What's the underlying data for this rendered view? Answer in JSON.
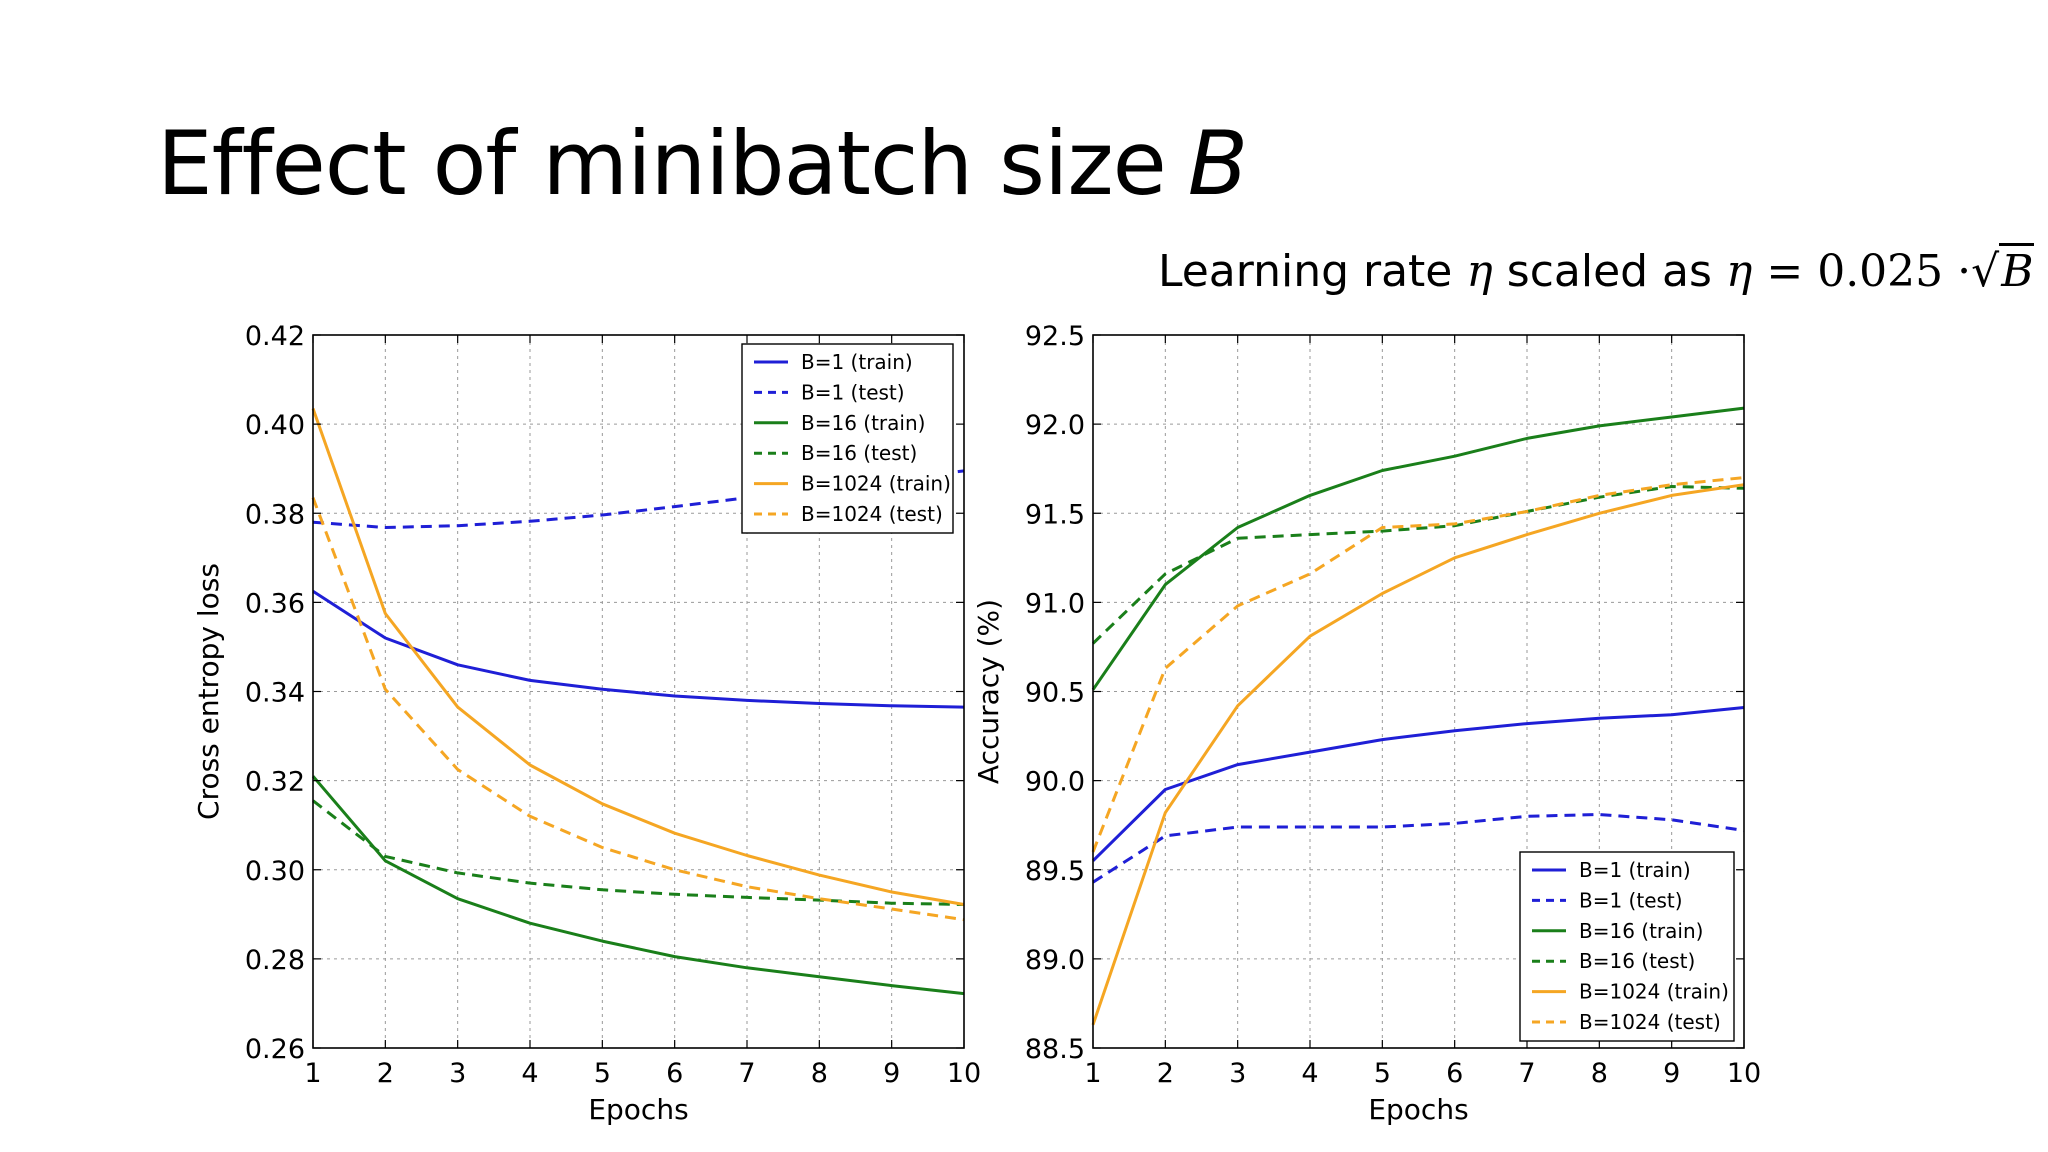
{
  "slide": {
    "title": "Effect of minibatch size",
    "title_var": "B",
    "subtitle": {
      "prefix": "Learning rate",
      "eta": "η",
      "middle": "scaled as",
      "eq": "=",
      "coef": "0.025",
      "dot": "·",
      "sqrt": "√",
      "var": "B"
    }
  },
  "colors": {
    "blue": "#1f1fd6",
    "green": "#1a7f1a",
    "orange": "#f5a623"
  },
  "chart_data": [
    {
      "type": "line",
      "xlabel": "Epochs",
      "ylabel": "Cross entropy loss",
      "xlim": [
        1,
        10
      ],
      "ylim": [
        0.26,
        0.42
      ],
      "xticks": [
        1,
        2,
        3,
        4,
        5,
        6,
        7,
        8,
        9,
        10
      ],
      "yticks": [
        "0.26",
        "0.28",
        "0.30",
        "0.32",
        "0.34",
        "0.36",
        "0.38",
        "0.40",
        "0.42"
      ],
      "grid": true,
      "legend_position": "top-right",
      "x": [
        1,
        2,
        3,
        4,
        5,
        6,
        7,
        8,
        9,
        10
      ],
      "series": [
        {
          "name": "B=1 (train)",
          "color": "blue",
          "dashed": false,
          "values": [
            0.3625,
            0.352,
            0.346,
            0.3425,
            0.3405,
            0.339,
            0.338,
            0.3373,
            0.3368,
            0.3365
          ]
        },
        {
          "name": "B=1 (test)",
          "color": "blue",
          "dashed": true,
          "values": [
            0.378,
            0.3768,
            0.3772,
            0.3782,
            0.3796,
            0.3815,
            0.3835,
            0.3855,
            0.3875,
            0.3895
          ]
        },
        {
          "name": "B=16 (train)",
          "color": "green",
          "dashed": false,
          "values": [
            0.321,
            0.302,
            0.2935,
            0.288,
            0.284,
            0.2805,
            0.278,
            0.276,
            0.274,
            0.2722
          ]
        },
        {
          "name": "B=16 (test)",
          "color": "green",
          "dashed": true,
          "values": [
            0.3155,
            0.303,
            0.2993,
            0.297,
            0.2955,
            0.2945,
            0.2938,
            0.2932,
            0.2925,
            0.2922
          ]
        },
        {
          "name": "B=1024 (train)",
          "color": "orange",
          "dashed": false,
          "values": [
            0.4035,
            0.3575,
            0.3365,
            0.3235,
            0.3148,
            0.3082,
            0.3032,
            0.2988,
            0.295,
            0.2922
          ]
        },
        {
          "name": "B=1024 (test)",
          "color": "orange",
          "dashed": true,
          "values": [
            0.3835,
            0.3405,
            0.3225,
            0.312,
            0.305,
            0.3,
            0.2962,
            0.2935,
            0.2912,
            0.2888
          ]
        }
      ]
    },
    {
      "type": "line",
      "xlabel": "Epochs",
      "ylabel": "Accuracy (%)",
      "xlim": [
        1,
        10
      ],
      "ylim": [
        88.5,
        92.5
      ],
      "xticks": [
        1,
        2,
        3,
        4,
        5,
        6,
        7,
        8,
        9,
        10
      ],
      "yticks": [
        "88.5",
        "89.0",
        "89.5",
        "90.0",
        "90.5",
        "91.0",
        "91.5",
        "92.0",
        "92.5"
      ],
      "grid": true,
      "legend_position": "lower-right",
      "x": [
        1,
        2,
        3,
        4,
        5,
        6,
        7,
        8,
        9,
        10
      ],
      "series": [
        {
          "name": "B=1 (train)",
          "color": "blue",
          "dashed": false,
          "values": [
            89.55,
            89.95,
            90.09,
            90.16,
            90.23,
            90.28,
            90.32,
            90.35,
            90.37,
            90.41
          ]
        },
        {
          "name": "B=1 (test)",
          "color": "blue",
          "dashed": true,
          "values": [
            89.43,
            89.69,
            89.74,
            89.74,
            89.74,
            89.76,
            89.8,
            89.81,
            89.78,
            89.72
          ]
        },
        {
          "name": "B=16 (train)",
          "color": "green",
          "dashed": false,
          "values": [
            90.51,
            91.1,
            91.42,
            91.6,
            91.74,
            91.82,
            91.92,
            91.99,
            92.04,
            92.09
          ]
        },
        {
          "name": "B=16 (test)",
          "color": "green",
          "dashed": true,
          "values": [
            90.77,
            91.16,
            91.36,
            91.38,
            91.4,
            91.43,
            91.51,
            91.59,
            91.65,
            91.64
          ]
        },
        {
          "name": "B=1024 (train)",
          "color": "orange",
          "dashed": false,
          "values": [
            88.63,
            89.82,
            90.42,
            90.81,
            91.05,
            91.25,
            91.38,
            91.5,
            91.6,
            91.66
          ]
        },
        {
          "name": "B=1024 (test)",
          "color": "orange",
          "dashed": true,
          "values": [
            89.6,
            90.63,
            90.98,
            91.16,
            91.42,
            91.44,
            91.51,
            91.6,
            91.66,
            91.7
          ]
        }
      ]
    }
  ]
}
